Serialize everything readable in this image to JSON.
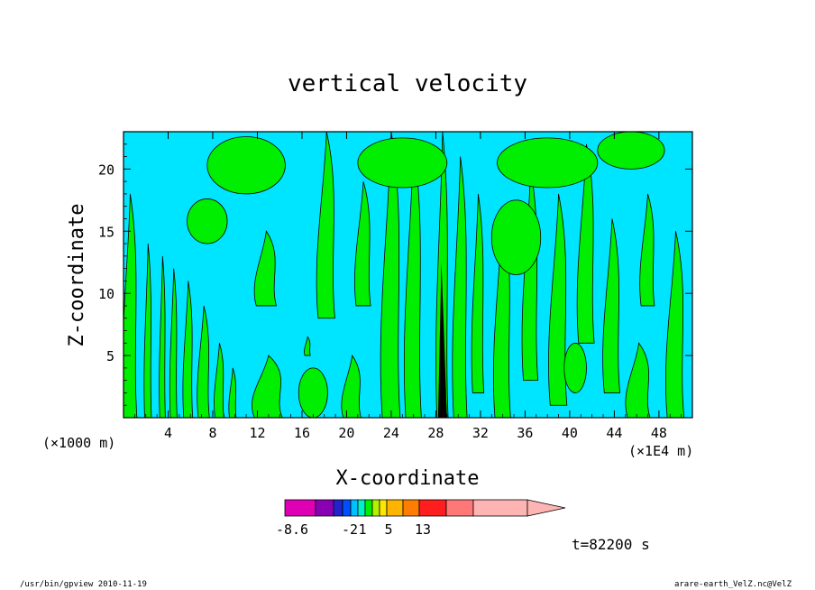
{
  "chart_data": {
    "type": "heatmap",
    "title": "vertical velocity",
    "xlabel": "X-coordinate",
    "ylabel": "Z-coordinate",
    "x_unit_left": "(×1000 m)",
    "x_unit_right": "(×1E4 m)",
    "xlim": [
      0,
      51
    ],
    "ylim": [
      0,
      23
    ],
    "x_ticks": [
      4,
      8,
      12,
      16,
      20,
      24,
      28,
      32,
      36,
      40,
      44,
      48
    ],
    "y_ticks": [
      5,
      10,
      15,
      20
    ],
    "colors": {
      "background": "#00e5ff",
      "positive": "#00ee00",
      "contour": "#000000"
    },
    "green_bands": [
      {
        "x": 0.6,
        "z0": 0,
        "z1": 18,
        "w": 1.2
      },
      {
        "x": 2.2,
        "z0": 0,
        "z1": 14,
        "w": 0.6
      },
      {
        "x": 3.5,
        "z0": 0,
        "z1": 13,
        "w": 0.5
      },
      {
        "x": 4.5,
        "z0": 0,
        "z1": 12,
        "w": 0.6
      },
      {
        "x": 5.8,
        "z0": 0,
        "z1": 11,
        "w": 0.8
      },
      {
        "x": 7.2,
        "z0": 0,
        "z1": 9,
        "w": 1.0
      },
      {
        "x": 8.6,
        "z0": 0,
        "z1": 6,
        "w": 0.8
      },
      {
        "x": 9.8,
        "z0": 0,
        "z1": 4,
        "w": 0.6
      },
      {
        "x": 13.0,
        "z0": 0,
        "z1": 5,
        "w": 2.5
      },
      {
        "x": 12.8,
        "z0": 9,
        "z1": 15,
        "w": 1.8
      },
      {
        "x": 16.5,
        "z0": 5,
        "z1": 6.5,
        "w": 0.5
      },
      {
        "x": 20.5,
        "z0": 0,
        "z1": 5,
        "w": 1.6
      },
      {
        "x": 18.2,
        "z0": 8,
        "z1": 23,
        "w": 1.5
      },
      {
        "x": 21.5,
        "z0": 9,
        "z1": 19,
        "w": 1.3
      },
      {
        "x": 24.0,
        "z0": 0,
        "z1": 23,
        "w": 1.6
      },
      {
        "x": 26.0,
        "z0": 0,
        "z1": 22,
        "w": 1.4
      },
      {
        "x": 28.6,
        "z0": 0,
        "z1": 23,
        "w": 1.0
      },
      {
        "x": 30.2,
        "z0": 0,
        "z1": 21,
        "w": 1.2
      },
      {
        "x": 31.8,
        "z0": 2,
        "z1": 18,
        "w": 1.0
      },
      {
        "x": 34.0,
        "z0": 0,
        "z1": 17,
        "w": 1.4
      },
      {
        "x": 36.5,
        "z0": 3,
        "z1": 20,
        "w": 1.3
      },
      {
        "x": 39.0,
        "z0": 1,
        "z1": 18,
        "w": 1.5
      },
      {
        "x": 41.5,
        "z0": 6,
        "z1": 22,
        "w": 1.4
      },
      {
        "x": 43.8,
        "z0": 2,
        "z1": 16,
        "w": 1.4
      },
      {
        "x": 46.2,
        "z0": 0,
        "z1": 6,
        "w": 2.0
      },
      {
        "x": 47.0,
        "z0": 9,
        "z1": 18,
        "w": 1.2
      },
      {
        "x": 49.5,
        "z0": 0,
        "z1": 15,
        "w": 1.5
      }
    ],
    "green_blobs": [
      {
        "x": 11.0,
        "z": 20.3,
        "rx": 3.5,
        "rz": 2.3
      },
      {
        "x": 25.0,
        "z": 20.5,
        "rx": 4.0,
        "rz": 2.0
      },
      {
        "x": 38.0,
        "z": 20.5,
        "rx": 4.5,
        "rz": 2.0
      },
      {
        "x": 45.5,
        "z": 21.5,
        "rx": 3.0,
        "rz": 1.5
      },
      {
        "x": 35.2,
        "z": 14.5,
        "rx": 2.2,
        "rz": 3.0
      },
      {
        "x": 7.5,
        "z": 15.8,
        "rx": 1.8,
        "rz": 1.8
      },
      {
        "x": 17.0,
        "z": 2.0,
        "rx": 1.3,
        "rz": 2.0
      },
      {
        "x": 40.5,
        "z": 4.0,
        "rx": 1.0,
        "rz": 2.0
      }
    ],
    "colorbar": {
      "colors": [
        "#dd00b4",
        "#8a00b4",
        "#2323cc",
        "#0050ff",
        "#00bfff",
        "#00f0c8",
        "#00ee00",
        "#b4f000",
        "#ffe600",
        "#ffb400",
        "#ff7d00",
        "#ff1e1e",
        "#ff7878",
        "#ffb4b4"
      ],
      "labels": [
        "-8.6",
        "-2",
        "1",
        "5",
        "13"
      ]
    },
    "time_label": "t=82200 s",
    "footer_left": "/usr/bin/gpview   2010-11-19",
    "footer_right": "arare-earth_VelZ.nc@VelZ"
  }
}
